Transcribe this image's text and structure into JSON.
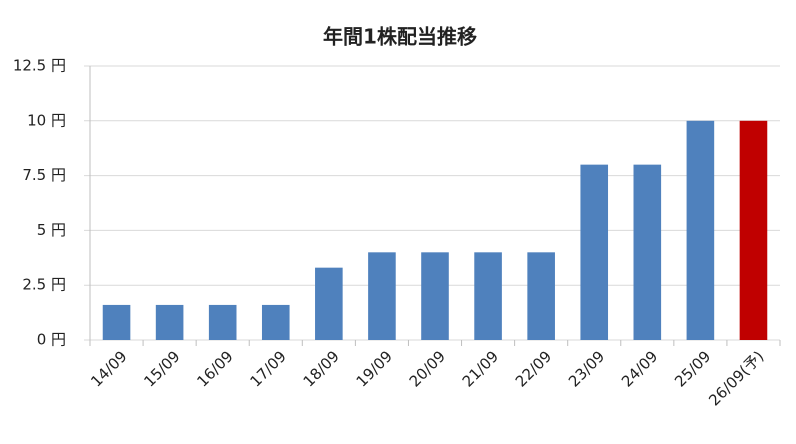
{
  "chart_data": {
    "type": "bar",
    "title": "年間1株配当推移",
    "categories": [
      "14/09",
      "15/09",
      "16/09",
      "17/09",
      "18/09",
      "19/09",
      "20/09",
      "21/09",
      "22/09",
      "23/09",
      "24/09",
      "25/09",
      "26/09(予)"
    ],
    "values": [
      1.6,
      1.6,
      1.6,
      1.6,
      3.3,
      4,
      4,
      4,
      4,
      8,
      8,
      10,
      10
    ],
    "colors": [
      "#4f81bd",
      "#4f81bd",
      "#4f81bd",
      "#4f81bd",
      "#4f81bd",
      "#4f81bd",
      "#4f81bd",
      "#4f81bd",
      "#4f81bd",
      "#4f81bd",
      "#4f81bd",
      "#4f81bd",
      "#c00000"
    ],
    "ylim": [
      0,
      12.5
    ],
    "yticks": [
      {
        "value": 0,
        "label": "0 円"
      },
      {
        "value": 2.5,
        "label": "2.5 円"
      },
      {
        "value": 5,
        "label": "5 円"
      },
      {
        "value": 7.5,
        "label": "7.5 円"
      },
      {
        "value": 10,
        "label": "10 円"
      },
      {
        "value": 12.5,
        "label": "12.5 円"
      }
    ],
    "grid": true
  }
}
